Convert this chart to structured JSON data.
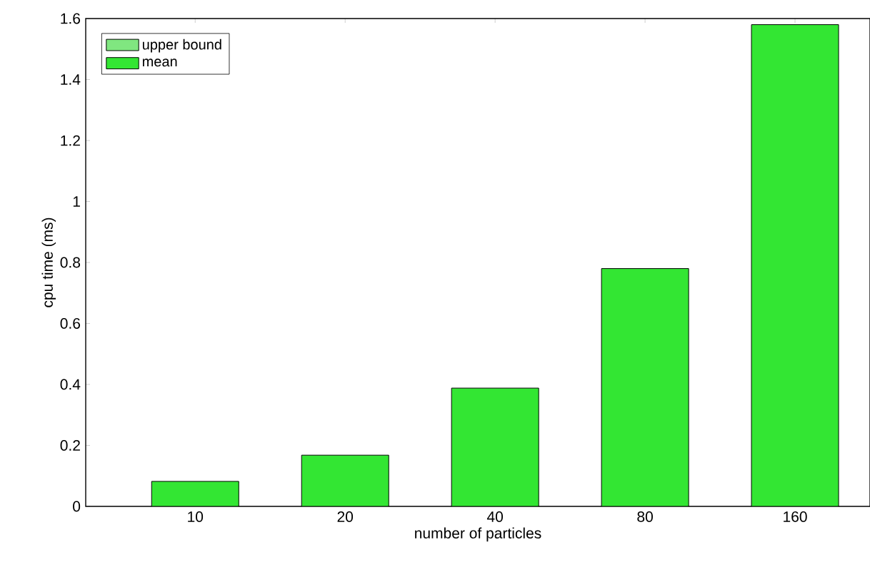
{
  "chart_data": {
    "type": "bar",
    "xlabel": "number of particles",
    "ylabel": "cpu time (ms)",
    "categories": [
      "10",
      "20",
      "40",
      "80",
      "160"
    ],
    "series": [
      {
        "name": "upper bound",
        "color": "#80e680",
        "values": [
          null,
          null,
          null,
          null,
          null
        ]
      },
      {
        "name": "mean",
        "color": "#33e633",
        "values": [
          0.082,
          0.168,
          0.388,
          0.78,
          1.58
        ]
      }
    ],
    "ylim": [
      0,
      1.6
    ],
    "yticks": [
      0,
      0.2,
      0.4,
      0.6,
      0.8,
      1,
      1.2,
      1.4,
      1.6
    ],
    "grid": false,
    "legend": "top left"
  }
}
